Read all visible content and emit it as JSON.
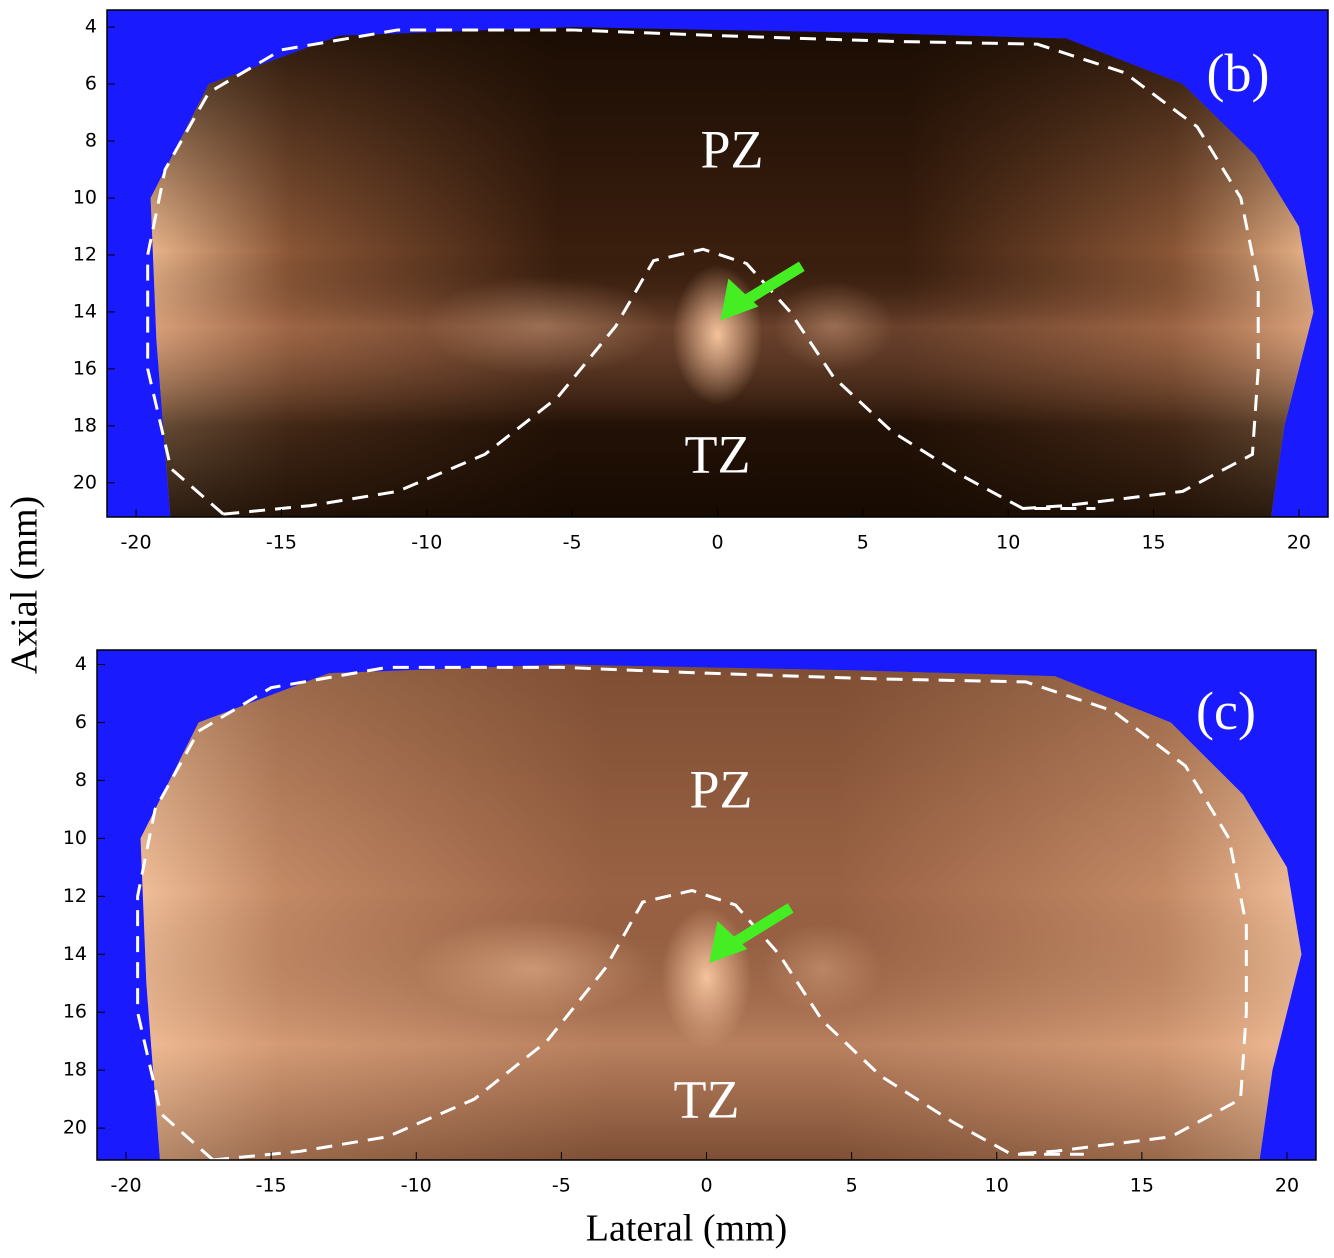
{
  "chart_data": [
    {
      "type": "image",
      "annotations": [
        "(b)",
        "PZ",
        "TZ"
      ],
      "ylabel": "Axial (mm)",
      "xlim": [
        -21,
        21
      ],
      "xticks": [
        -20,
        -15,
        -10,
        -5,
        0,
        5,
        10,
        15,
        20
      ],
      "ylim": [
        3.4,
        21.2
      ],
      "y_reversed": true,
      "yticks": [
        4,
        6,
        8,
        10,
        12,
        14,
        16,
        18,
        20
      ]
    },
    {
      "type": "image",
      "annotations": [
        "(c)",
        "PZ",
        "TZ"
      ],
      "xlabel": "Lateral (mm)",
      "xlim": [
        -21,
        21
      ],
      "xticks": [
        -20,
        -15,
        -10,
        -5,
        0,
        5,
        10,
        15,
        20
      ],
      "ylim": [
        3.5,
        21.1
      ],
      "y_reversed": true,
      "yticks": [
        4,
        6,
        8,
        10,
        12,
        14,
        16,
        18,
        20
      ]
    }
  ]
}
